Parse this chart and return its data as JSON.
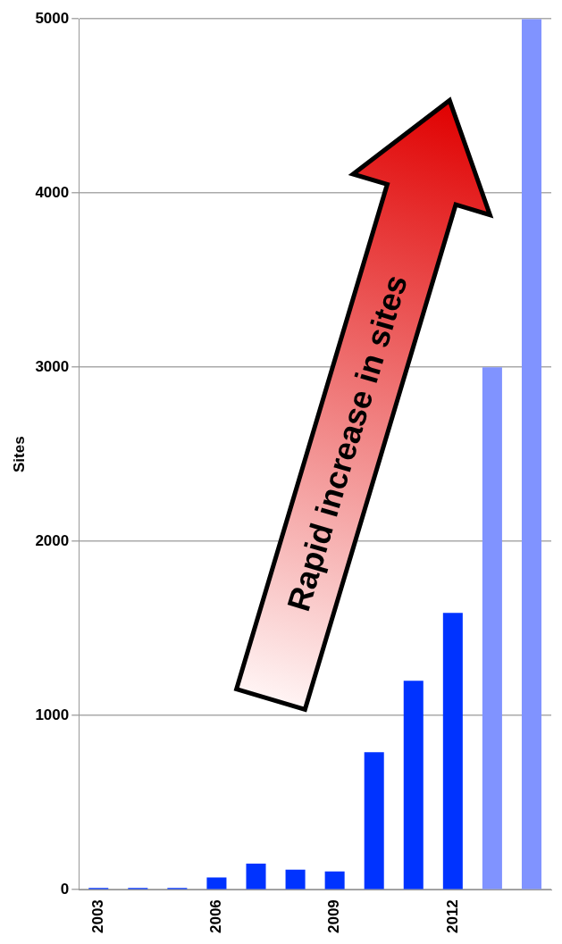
{
  "chart_data": {
    "type": "bar",
    "ylabel": "Sites",
    "categories": [
      "2003",
      null,
      null,
      "2006",
      null,
      null,
      "2009",
      null,
      null,
      "2012",
      null,
      null
    ],
    "values": [
      10,
      10,
      10,
      70,
      150,
      115,
      105,
      790,
      1200,
      1590,
      3000,
      5000
    ],
    "colors": [
      "#0033ff",
      "#0033ff",
      "#0033ff",
      "#0033ff",
      "#0033ff",
      "#0033ff",
      "#0033ff",
      "#0033ff",
      "#0033ff",
      "#0033ff",
      "#8093ff",
      "#8093ff"
    ],
    "ylim": [
      0,
      5000
    ],
    "yticks": [
      0,
      1000,
      2000,
      3000,
      4000,
      5000
    ],
    "grid": "y",
    "legend": false,
    "annotations": [
      "Rapid increase in sites"
    ]
  }
}
